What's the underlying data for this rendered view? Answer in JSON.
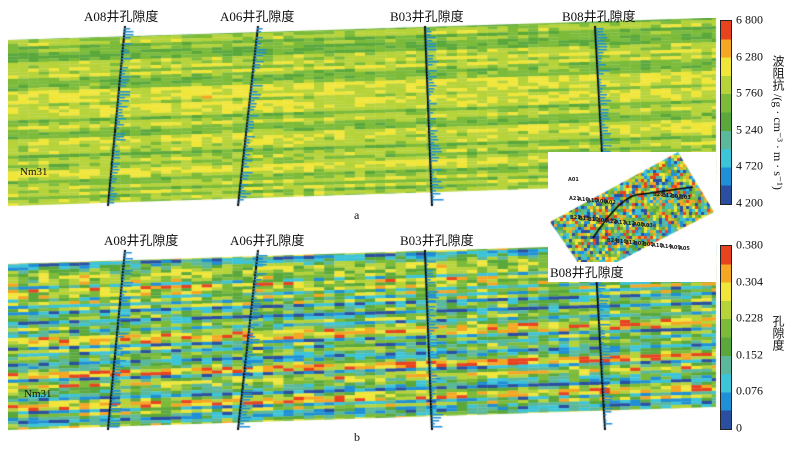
{
  "chart_data": [
    {
      "type": "heatmap",
      "panel_label": "a",
      "title": "",
      "property": "波阻抗",
      "colorbar_label": "波阻抗 /(g · cm⁻³ · m · s⁻¹)",
      "colorbar_ticks": [
        "6 800",
        "6 280",
        "5 760",
        "5 240",
        "4 720",
        "4 200"
      ],
      "range": [
        4200,
        6800
      ],
      "wells": [
        "A08井孔隙度",
        "A06井孔隙度",
        "B03井孔隙度",
        "B08井孔隙度"
      ],
      "horizon": "Nm31"
    },
    {
      "type": "heatmap",
      "panel_label": "b",
      "title": "",
      "property": "孔隙度",
      "colorbar_label": "孔隙度",
      "colorbar_ticks": [
        "0.380",
        "0.304",
        "0.228",
        "0.152",
        "0.076",
        "0"
      ],
      "range": [
        0,
        0.38
      ],
      "wells": [
        "A08井孔隙度",
        "A06井孔隙度",
        "B03井孔隙度",
        "B08井孔隙度"
      ],
      "horizon": "Nm31"
    }
  ],
  "inset": {
    "wells": [
      "A01",
      "A02",
      "A03",
      "A05",
      "A06",
      "A08",
      "A09",
      "A10",
      "A12",
      "A14",
      "A16",
      "A17",
      "A18",
      "A21",
      "A22",
      "B01",
      "B03",
      "B05",
      "B07",
      "B08",
      "B10",
      "B11",
      "B12",
      "B15",
      "B16",
      "B20",
      "B21",
      "B24"
    ]
  },
  "colors": {
    "ramp": [
      "#2a4fa0",
      "#1f8fd6",
      "#3cc4d8",
      "#5bb89a",
      "#5aa83c",
      "#7cbb3a",
      "#b7d33a",
      "#f0e63a",
      "#f5a623",
      "#e8431f"
    ]
  }
}
